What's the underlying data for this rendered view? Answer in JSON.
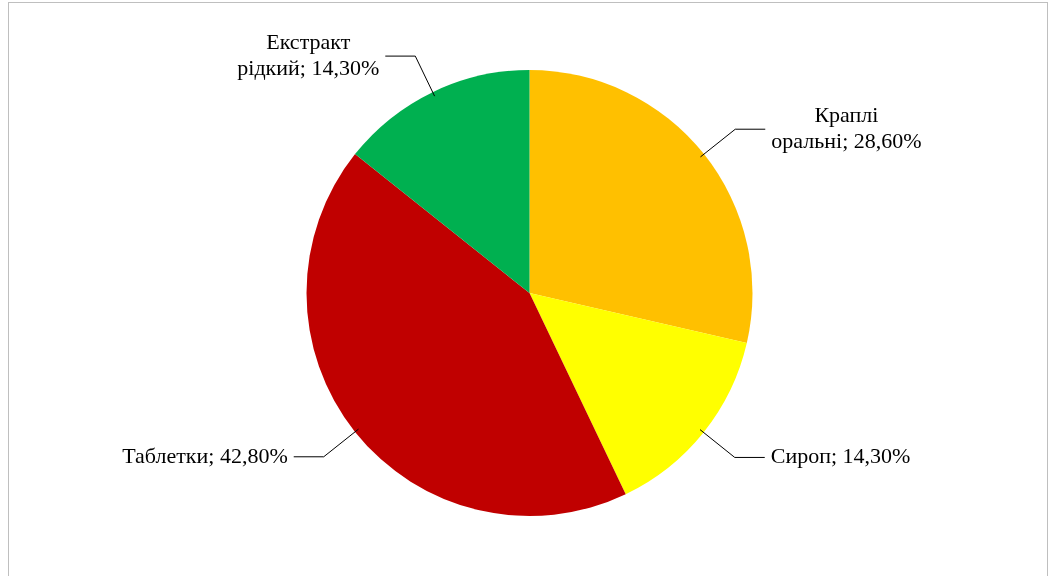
{
  "chart_data": {
    "type": "pie",
    "categories": [
      "Краплі оральні",
      "Сироп",
      "Таблетки",
      "Екстракт рідкий"
    ],
    "values": [
      28.6,
      14.3,
      42.8,
      14.3
    ],
    "colors": [
      "#ffc000",
      "#ffff00",
      "#c00000",
      "#00b050"
    ],
    "value_labels": [
      "28,60%",
      "14,30%",
      "42,80%",
      "14,30%"
    ],
    "legend": false
  }
}
